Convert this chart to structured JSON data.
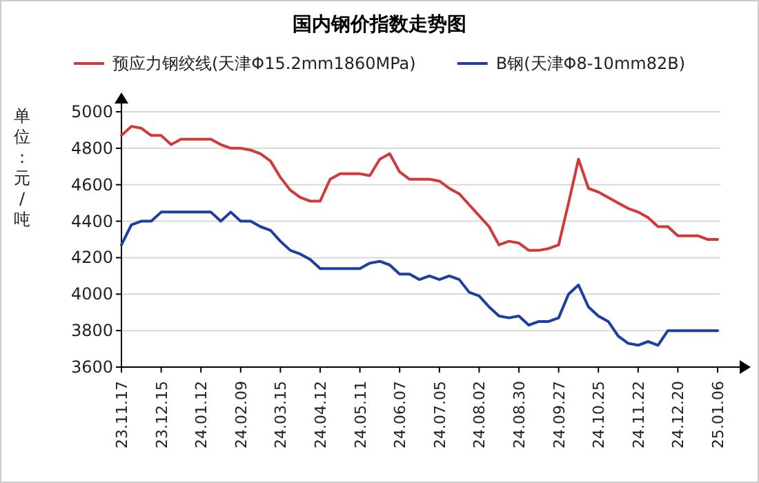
{
  "chart_data": {
    "type": "line",
    "title": "国内钢价指数走势图",
    "ylabel": "单位：元/吨",
    "categories": [
      "23.11.17",
      null,
      null,
      null,
      "23.12.15",
      null,
      null,
      null,
      "24.01.12",
      null,
      null,
      null,
      "24.02.09",
      null,
      null,
      null,
      "24.03.15",
      null,
      null,
      null,
      "24.04.12",
      null,
      null,
      null,
      "24.05.11",
      null,
      null,
      null,
      "24.06.07",
      null,
      null,
      null,
      "24.07.05",
      null,
      null,
      null,
      "24.08.02",
      null,
      null,
      null,
      "24.08.30",
      null,
      null,
      null,
      "24.09.27",
      null,
      null,
      null,
      "24.10.25",
      null,
      null,
      null,
      "24.11.22",
      null,
      null,
      null,
      "24.12.20",
      null,
      null,
      null,
      "25.01.06"
    ],
    "series": [
      {
        "name": "预应力钢绞线(天津Φ15.2mm1860MPa)",
        "color": "#d03a3a",
        "values": [
          4870,
          4920,
          4910,
          4870,
          4870,
          4820,
          4850,
          4850,
          4850,
          4850,
          4820,
          4800,
          4800,
          4790,
          4770,
          4730,
          4640,
          4570,
          4530,
          4510,
          4510,
          4630,
          4660,
          4660,
          4660,
          4650,
          4740,
          4770,
          4670,
          4630,
          4630,
          4630,
          4620,
          4580,
          4550,
          4490,
          4430,
          4370,
          4270,
          4290,
          4280,
          4240,
          4240,
          4250,
          4270,
          4500,
          4740,
          4580,
          4560,
          4530,
          4500,
          4470,
          4450,
          4420,
          4370,
          4370,
          4320,
          4320,
          4320,
          4300,
          4300
        ]
      },
      {
        "name": "B钢(天津Φ8-10mm82B)",
        "color": "#1f3fa0",
        "values": [
          4270,
          4380,
          4400,
          4400,
          4450,
          4450,
          4450,
          4450,
          4450,
          4450,
          4400,
          4450,
          4400,
          4400,
          4370,
          4350,
          4290,
          4240,
          4220,
          4190,
          4140,
          4140,
          4140,
          4140,
          4140,
          4170,
          4180,
          4160,
          4110,
          4110,
          4080,
          4100,
          4080,
          4100,
          4080,
          4010,
          3990,
          3930,
          3880,
          3870,
          3880,
          3830,
          3850,
          3850,
          3870,
          4000,
          4050,
          3930,
          3880,
          3850,
          3770,
          3730,
          3720,
          3740,
          3720,
          3800,
          3800,
          3800,
          3800,
          3800,
          3800
        ]
      }
    ],
    "ylim": [
      3600,
      5000
    ],
    "yticks": [
      3600,
      3800,
      4000,
      4200,
      4400,
      4600,
      4800,
      5000
    ],
    "grid": "y",
    "legend": "top"
  }
}
